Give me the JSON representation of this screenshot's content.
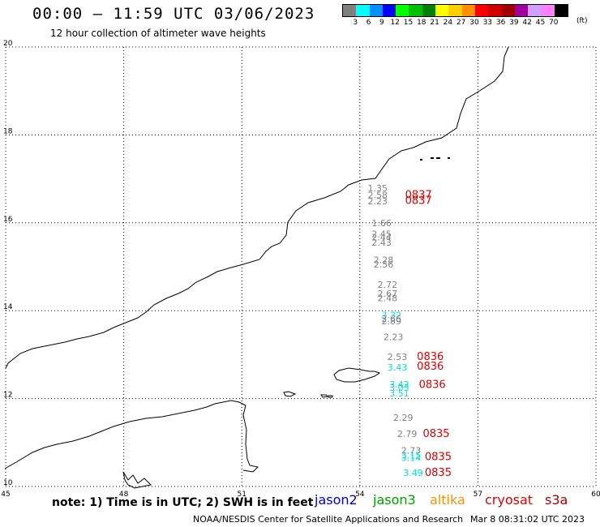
{
  "header": {
    "title": "00:00 – 11:59 UTC 03/06/2023",
    "subtitle": "12 hour collection of altimeter wave heights"
  },
  "colorbar": {
    "unit": "(ft)",
    "bins": [
      {
        "color": "#808080",
        "label": "3"
      },
      {
        "color": "#00ffff",
        "label": "6"
      },
      {
        "color": "#0090ff",
        "label": "9"
      },
      {
        "color": "#0000ff",
        "label": "12"
      },
      {
        "color": "#00ff00",
        "label": "15"
      },
      {
        "color": "#00c000",
        "label": "18"
      },
      {
        "color": "#008000",
        "label": "21"
      },
      {
        "color": "#ffff00",
        "label": "24"
      },
      {
        "color": "#ffd000",
        "label": "27"
      },
      {
        "color": "#ff9000",
        "label": "30"
      },
      {
        "color": "#ff0000",
        "label": "33"
      },
      {
        "color": "#d00000",
        "label": "36"
      },
      {
        "color": "#a00000",
        "label": "39"
      },
      {
        "color": "#a000a0",
        "label": "42"
      },
      {
        "color": "#d0a0ff",
        "label": "45"
      },
      {
        "color": "#ff80ff",
        "label": "70"
      },
      {
        "color": "#000000",
        "label": ""
      }
    ]
  },
  "map": {
    "lon_range": [
      45,
      60
    ],
    "lat_range": [
      10,
      20
    ],
    "lon_ticks": [
      "45",
      "48",
      "51",
      "54",
      "57",
      "60"
    ],
    "lat_ticks": [
      "20",
      "18",
      "16",
      "14",
      "12",
      "10"
    ],
    "wave_heights": [
      {
        "lon": 54.2,
        "lat": 16.72,
        "text": "1.35",
        "color": "#808080"
      },
      {
        "lon": 54.2,
        "lat": 16.56,
        "text": "2.58",
        "color": "#808080"
      },
      {
        "lon": 54.2,
        "lat": 16.42,
        "text": "2.23",
        "color": "#808080"
      },
      {
        "lon": 54.3,
        "lat": 15.92,
        "text": "1.66",
        "color": "#808080"
      },
      {
        "lon": 54.3,
        "lat": 15.67,
        "text": "2.45",
        "color": "#808080"
      },
      {
        "lon": 54.3,
        "lat": 15.6,
        "text": "2.44",
        "color": "#808080"
      },
      {
        "lon": 54.3,
        "lat": 15.48,
        "text": "2.43",
        "color": "#808080"
      },
      {
        "lon": 54.35,
        "lat": 15.08,
        "text": "2.28",
        "color": "#808080"
      },
      {
        "lon": 54.35,
        "lat": 14.98,
        "text": "2.56",
        "color": "#808080"
      },
      {
        "lon": 54.45,
        "lat": 14.52,
        "text": "2.72",
        "color": "#808080"
      },
      {
        "lon": 54.45,
        "lat": 14.32,
        "text": "2.67",
        "color": "#808080"
      },
      {
        "lon": 54.45,
        "lat": 14.22,
        "text": "2.48",
        "color": "#808080"
      },
      {
        "lon": 54.55,
        "lat": 13.83,
        "text": "3.32",
        "color": "#00dddd"
      },
      {
        "lon": 54.55,
        "lat": 13.75,
        "text": "2.66",
        "color": "#808080"
      },
      {
        "lon": 54.55,
        "lat": 13.69,
        "text": "2.89",
        "color": "#808080"
      },
      {
        "lon": 54.6,
        "lat": 13.33,
        "text": "2.23",
        "color": "#808080"
      },
      {
        "lon": 54.7,
        "lat": 12.88,
        "text": "2.53",
        "color": "#808080"
      },
      {
        "lon": 54.7,
        "lat": 12.64,
        "text": "3.43",
        "color": "#00dddd"
      },
      {
        "lon": 54.75,
        "lat": 12.25,
        "text": "3.42",
        "color": "#00dddd"
      },
      {
        "lon": 54.75,
        "lat": 12.18,
        "text": "3.03",
        "color": "#00dddd"
      },
      {
        "lon": 54.75,
        "lat": 12.05,
        "text": "3.51",
        "color": "#00dddd"
      },
      {
        "lon": 54.85,
        "lat": 11.49,
        "text": "2.29",
        "color": "#808080"
      },
      {
        "lon": 54.95,
        "lat": 11.13,
        "text": "2.79",
        "color": "#808080"
      },
      {
        "lon": 55.05,
        "lat": 10.75,
        "text": "2.73",
        "color": "#808080"
      },
      {
        "lon": 55.05,
        "lat": 10.64,
        "text": "3.15",
        "color": "#00dddd"
      },
      {
        "lon": 55.05,
        "lat": 10.58,
        "text": "3.14",
        "color": "#00dddd"
      },
      {
        "lon": 55.1,
        "lat": 10.24,
        "text": "3.49",
        "color": "#00dddd"
      }
    ],
    "pass_times": [
      {
        "lon": 55.15,
        "lat": 16.56,
        "text": "0837"
      },
      {
        "lon": 55.15,
        "lat": 16.43,
        "text": "0837"
      },
      {
        "lon": 55.45,
        "lat": 12.88,
        "text": "0836"
      },
      {
        "lon": 55.45,
        "lat": 12.66,
        "text": "0836"
      },
      {
        "lon": 55.5,
        "lat": 12.24,
        "text": "0836"
      },
      {
        "lon": 55.6,
        "lat": 11.13,
        "text": "0835"
      },
      {
        "lon": 55.65,
        "lat": 10.6,
        "text": "0835"
      },
      {
        "lon": 55.65,
        "lat": 10.24,
        "text": "0835"
      }
    ]
  },
  "footer": {
    "note": "note: 1) Time is in UTC; 2) SWH is in feet",
    "satellites": [
      {
        "name": "jason2",
        "color": "#0000cc"
      },
      {
        "name": "jason3",
        "color": "#00a000"
      },
      {
        "name": "altika",
        "color": "#ff9000"
      },
      {
        "name": "cryosat",
        "color": "#dd0000"
      },
      {
        "name": "s3a",
        "color": "#aa0000"
      }
    ],
    "credit": "NOAA/NESDIS Center for Satellite Applications and Research",
    "generated": "Mar  8 08:31:02 UTC 2023"
  }
}
